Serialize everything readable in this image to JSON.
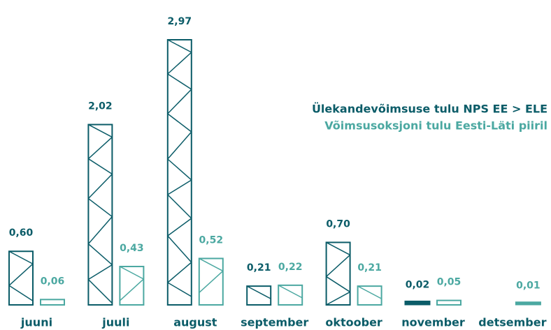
{
  "chart_data": {
    "type": "bar",
    "categories": [
      "juuni",
      "juuli",
      "august",
      "september",
      "oktoober",
      "november",
      "detsember"
    ],
    "series": [
      {
        "name": "Ülekandevõimsuse tulu NPS EE > ELE",
        "color": "#0b5c68",
        "values": [
          0.6,
          2.02,
          2.97,
          0.21,
          0.7,
          0.02,
          null
        ],
        "value_labels": [
          "0,60",
          "2,02",
          "2,97",
          "0,21",
          "0,70",
          "0,02",
          null
        ]
      },
      {
        "name": "Võimsusoksjoni tulu Eesti-Läti piiril",
        "color": "#4ba8a1",
        "values": [
          0.06,
          0.43,
          0.52,
          0.22,
          0.21,
          0.05,
          0.01
        ],
        "value_labels": [
          "0,06",
          "0,43",
          "0,52",
          "0,22",
          "0,21",
          "0,05",
          "0,01"
        ]
      }
    ],
    "legend": "upper right"
  }
}
